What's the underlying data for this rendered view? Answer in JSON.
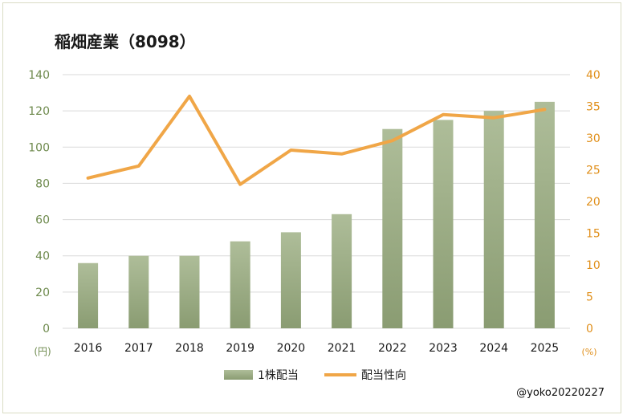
{
  "chart_data": {
    "type": "bar+line",
    "title": "稲畑産業（8098）",
    "credit": "@yoko20220227",
    "categories": [
      "2016",
      "2017",
      "2018",
      "2019",
      "2020",
      "2021",
      "2022",
      "2023",
      "2024",
      "2025"
    ],
    "series": [
      {
        "name": "1株配当",
        "type": "bar",
        "axis": "left",
        "values": [
          36,
          40,
          40,
          48,
          53,
          63,
          110,
          115,
          120,
          125
        ]
      },
      {
        "name": "配当性向",
        "type": "line",
        "axis": "right",
        "values": [
          23.7,
          25.6,
          36.6,
          22.7,
          28.1,
          27.5,
          29.6,
          33.7,
          33.2,
          34.5
        ]
      }
    ],
    "y_left": {
      "ticks": [
        0,
        20,
        40,
        60,
        80,
        100,
        120,
        140
      ],
      "range": [
        0,
        140
      ],
      "unit": "(円)"
    },
    "y_right": {
      "ticks": [
        0,
        5,
        10,
        15,
        20,
        25,
        30,
        35,
        40
      ],
      "range": [
        0,
        40
      ],
      "unit": "(%)"
    },
    "grid": true,
    "legend_position": "bottom",
    "colors": {
      "bar_top": "#aebd99",
      "bar_bottom": "#8a9c72",
      "line": "#f0a647",
      "left_axis_text": "#6e8a4d",
      "right_axis_text": "#e08f1a",
      "grid": "#d9d9d9"
    }
  }
}
